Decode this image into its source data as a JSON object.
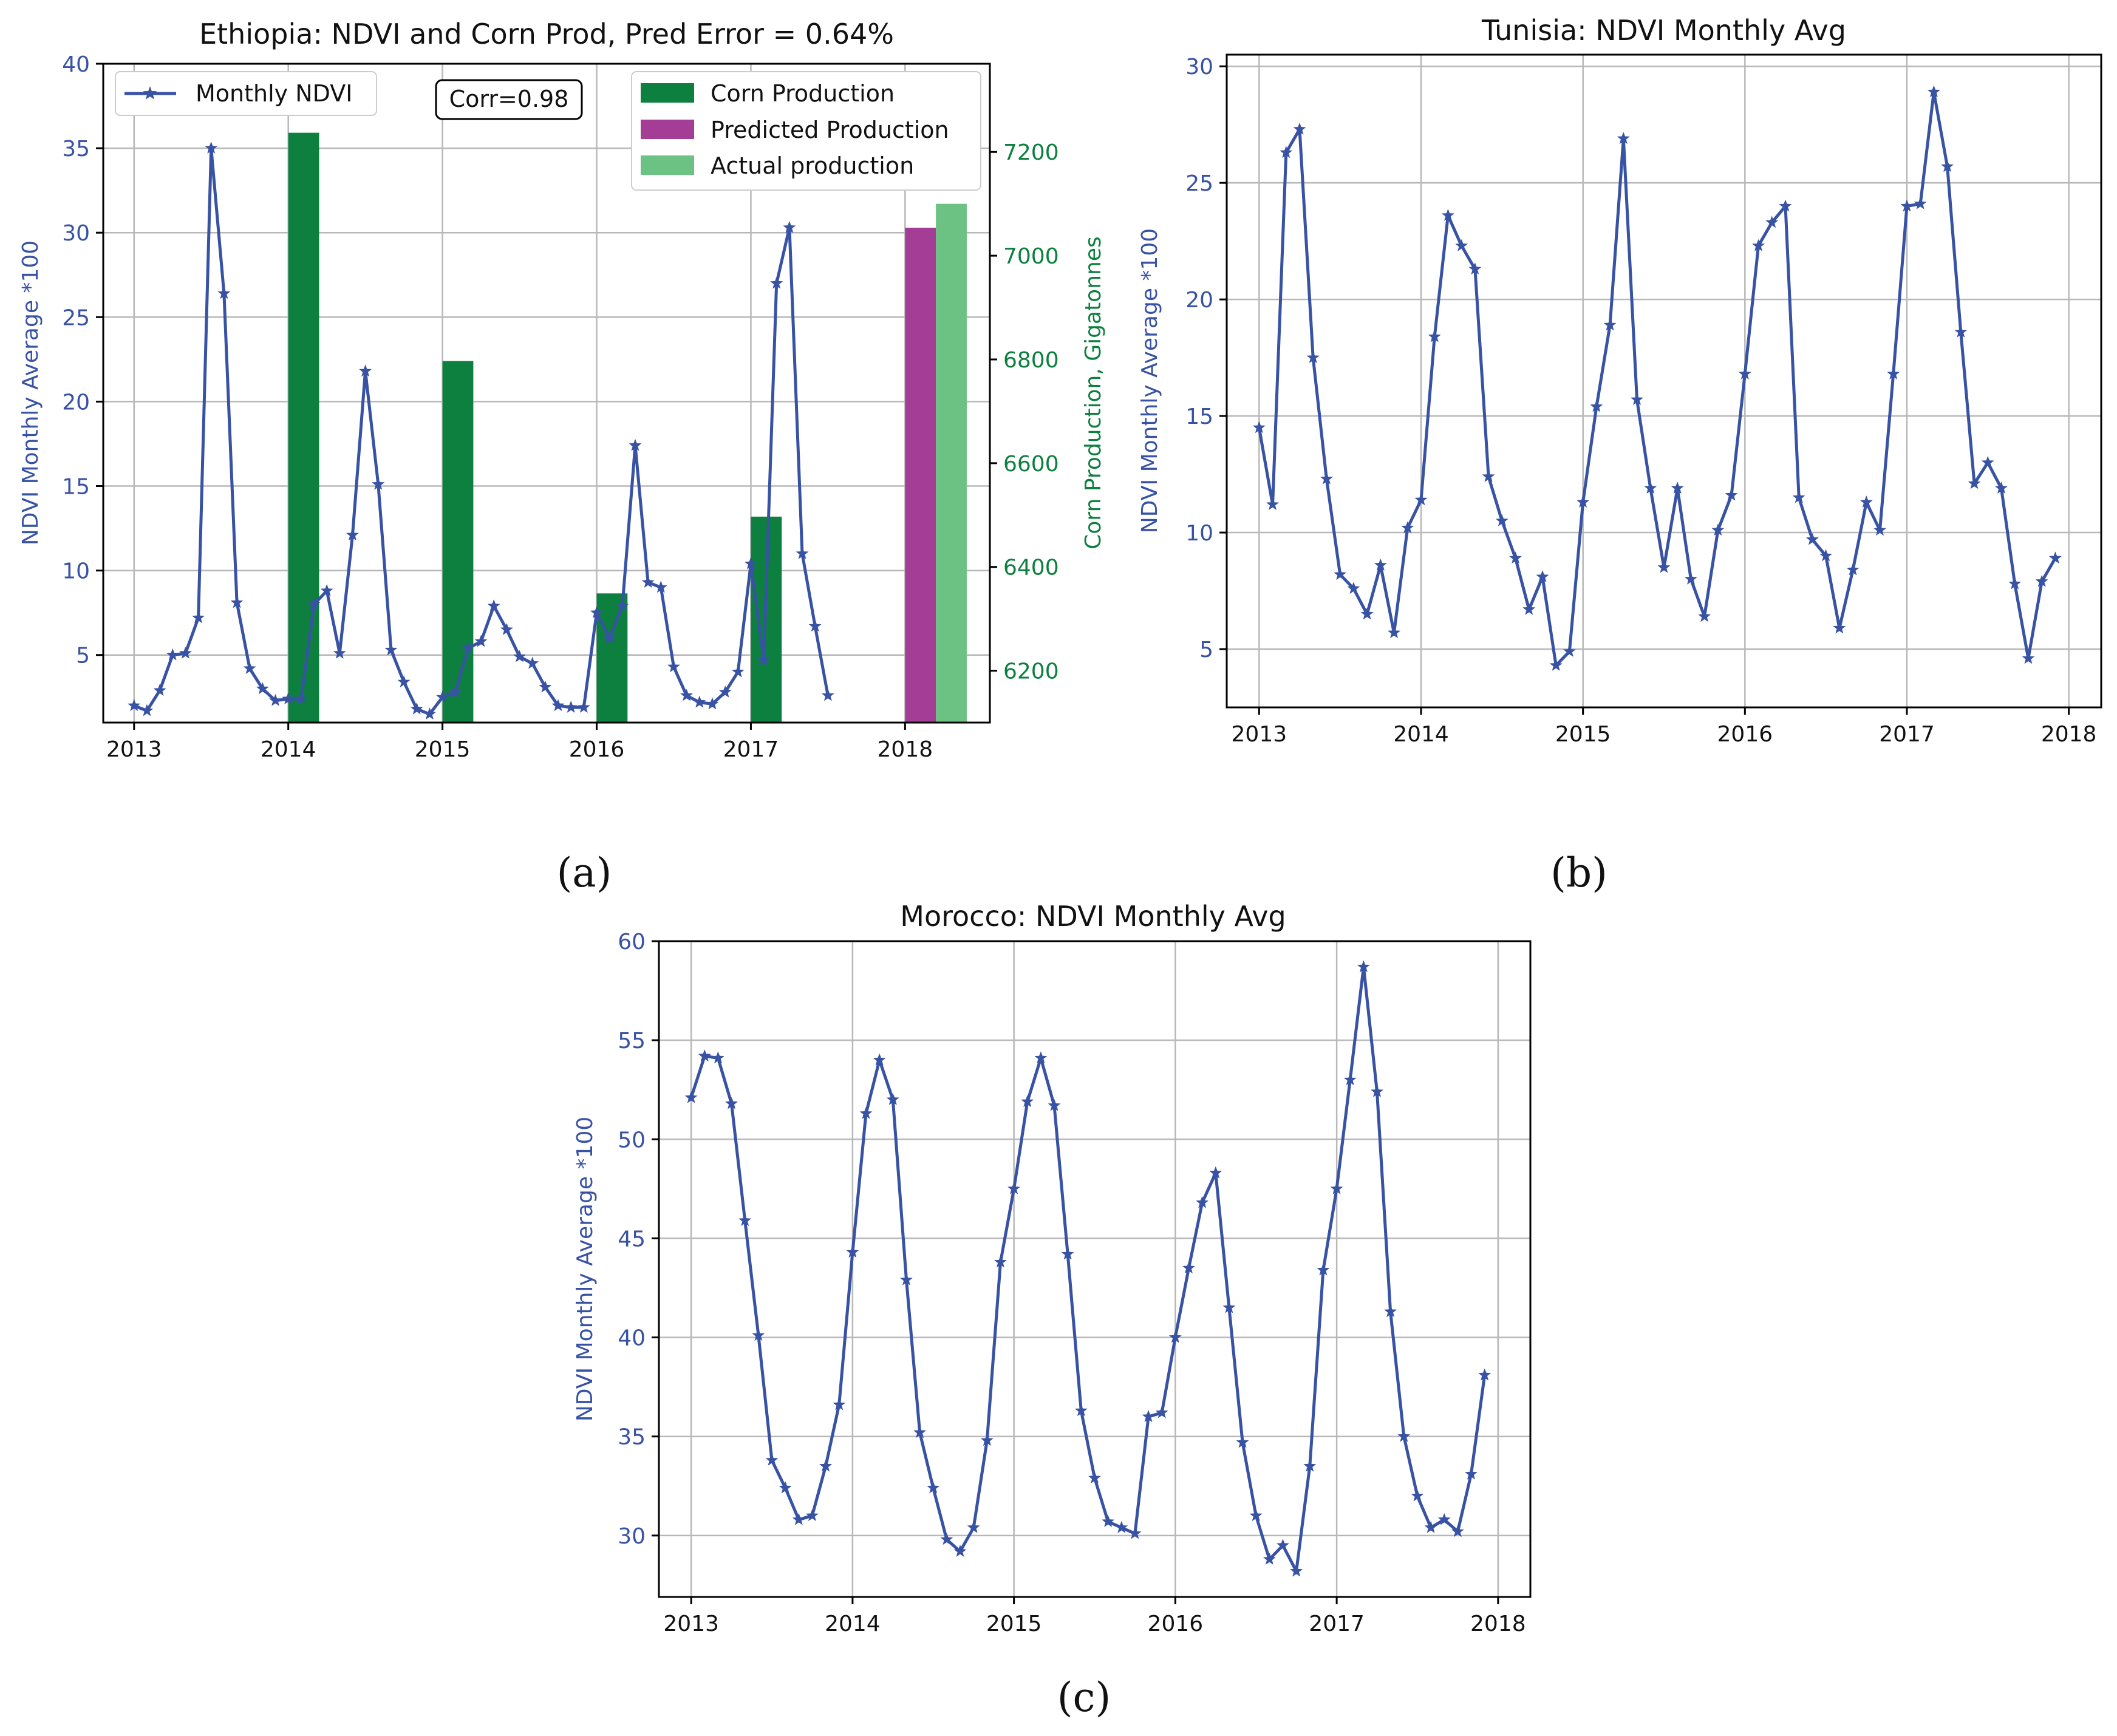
{
  "colors": {
    "ndvi": "#3852A4",
    "ndvi_text": "#3852A4",
    "corn": "#0D8040",
    "predicted": "#A33D96",
    "actual": "#6CC283",
    "grid": "#B8B8B8",
    "axis": "#000000",
    "right_axis_text": "#0D8040"
  },
  "chart_data": [
    {
      "id": "a",
      "type": "line+bar",
      "panel_label": "(a)",
      "title": "Ethiopia: NDVI and Corn Prod, Pred Error = 0.64%",
      "xlabel": "",
      "ylabel": "NDVI Monthly Average *100",
      "ylabel_right": "Corn Production, Gigatonnes",
      "xlim": [
        2012.8,
        2018.55
      ],
      "ylim": [
        1.0,
        40.0
      ],
      "ylim_right": [
        6100,
        7370
      ],
      "x_ticks": [
        2013,
        2014,
        2015,
        2016,
        2017,
        2018
      ],
      "x_tick_labels": [
        "2013",
        "2014",
        "2015",
        "2016",
        "2017",
        "2018"
      ],
      "y_ticks": [
        5,
        10,
        15,
        20,
        25,
        30,
        35,
        40
      ],
      "y_tick_labels": [
        "5",
        "10",
        "15",
        "20",
        "25",
        "30",
        "35",
        "40"
      ],
      "y_ticks_right": [
        6200,
        6400,
        6600,
        6800,
        7000,
        7200
      ],
      "y_tick_labels_right": [
        "6200",
        "6400",
        "6600",
        "6800",
        "7000",
        "7200"
      ],
      "grid": true,
      "annotation": "Corr=0.98",
      "legend_left": [
        "Monthly NDVI"
      ],
      "legend_right": [
        "Corn Production",
        "Predicted Production",
        "Actual production"
      ],
      "series": [
        {
          "name": "Monthly NDVI",
          "kind": "line",
          "x_start": 2013.0,
          "x_step": 0.08333,
          "values": [
            2.0,
            1.7,
            2.9,
            5.0,
            5.1,
            7.2,
            35.0,
            26.4,
            8.1,
            4.2,
            3.0,
            2.3,
            2.4,
            2.4,
            8.0,
            8.8,
            5.1,
            12.1,
            21.8,
            15.1,
            5.3,
            3.4,
            1.8,
            1.5,
            2.5,
            2.8,
            5.4,
            5.8,
            7.9,
            6.5,
            4.9,
            4.5,
            3.1,
            2.0,
            1.9,
            1.9,
            7.5,
            6.0,
            7.9,
            17.4,
            9.3,
            9.0,
            4.3,
            2.6,
            2.2,
            2.1,
            2.8,
            4.0,
            10.4,
            4.7,
            27.0,
            30.3,
            11.0,
            6.7,
            2.6
          ]
        },
        {
          "name": "Corn Production",
          "kind": "bar",
          "x": [
            2014.0,
            2015.0,
            2016.0,
            2017.0
          ],
          "values": [
            7237,
            6797,
            6349,
            6497
          ]
        },
        {
          "name": "Predicted Production",
          "kind": "bar",
          "x": [
            2018.0
          ],
          "values": [
            7054
          ]
        },
        {
          "name": "Actual production",
          "kind": "bar",
          "x": [
            2018.2
          ],
          "values": [
            7100
          ]
        }
      ]
    },
    {
      "id": "b",
      "type": "line",
      "panel_label": "(b)",
      "title": "Tunisia: NDVI Monthly Avg",
      "xlabel": "",
      "ylabel": "NDVI Monthly Average *100",
      "xlim": [
        2012.8,
        2018.2
      ],
      "ylim": [
        2.5,
        30.5
      ],
      "x_ticks": [
        2013,
        2014,
        2015,
        2016,
        2017,
        2018
      ],
      "x_tick_labels": [
        "2013",
        "2014",
        "2015",
        "2016",
        "2017",
        "2018"
      ],
      "y_ticks": [
        5,
        10,
        15,
        20,
        25,
        30
      ],
      "y_tick_labels": [
        "5",
        "10",
        "15",
        "20",
        "25",
        "30"
      ],
      "grid": true,
      "series": [
        {
          "name": "Monthly NDVI",
          "x_start": 2013.0,
          "x_step": 0.08333,
          "values": [
            14.5,
            11.2,
            26.3,
            27.3,
            17.5,
            12.3,
            8.2,
            7.6,
            6.5,
            8.6,
            5.7,
            10.2,
            11.4,
            18.4,
            23.6,
            22.3,
            21.3,
            12.4,
            10.5,
            8.9,
            6.7,
            8.1,
            4.3,
            4.9,
            11.3,
            15.4,
            18.9,
            26.9,
            15.7,
            11.9,
            8.5,
            11.9,
            8.0,
            6.4,
            10.1,
            11.6,
            16.8,
            22.3,
            23.3,
            24.0,
            11.5,
            9.7,
            9.0,
            5.9,
            8.4,
            11.3,
            10.1,
            16.8,
            24.0,
            24.1,
            28.9,
            25.7,
            18.6,
            12.1,
            13.0,
            11.9,
            7.8,
            4.6,
            7.9,
            8.9
          ]
        }
      ]
    },
    {
      "id": "c",
      "type": "line",
      "panel_label": "(c)",
      "title": "Morocco: NDVI Monthly Avg",
      "xlabel": "",
      "ylabel": "NDVI Monthly Average *100",
      "xlim": [
        2012.8,
        2018.2
      ],
      "ylim": [
        26.9,
        60.0
      ],
      "x_ticks": [
        2013,
        2014,
        2015,
        2016,
        2017,
        2018
      ],
      "x_tick_labels": [
        "2013",
        "2014",
        "2015",
        "2016",
        "2017",
        "2018"
      ],
      "y_ticks": [
        30,
        35,
        40,
        45,
        50,
        55,
        60
      ],
      "y_tick_labels": [
        "30",
        "35",
        "40",
        "45",
        "50",
        "55",
        "60"
      ],
      "grid": true,
      "series": [
        {
          "name": "Monthly NDVI",
          "x_start": 2013.0,
          "x_step": 0.08333,
          "values": [
            52.1,
            54.2,
            54.1,
            51.8,
            45.9,
            40.1,
            33.8,
            32.4,
            30.8,
            31.0,
            33.5,
            36.6,
            44.3,
            51.3,
            54.0,
            52.0,
            42.9,
            35.2,
            32.4,
            29.8,
            29.2,
            30.4,
            34.8,
            43.8,
            47.5,
            51.9,
            54.1,
            51.7,
            44.2,
            36.3,
            32.9,
            30.7,
            30.4,
            30.1,
            36.0,
            36.2,
            40.0,
            43.5,
            46.8,
            48.3,
            41.5,
            34.7,
            31.0,
            28.8,
            29.5,
            28.2,
            33.5,
            43.4,
            47.5,
            53.0,
            58.7,
            52.4,
            41.3,
            35.0,
            32.0,
            30.4,
            30.8,
            30.2,
            33.1,
            38.1
          ]
        }
      ]
    }
  ]
}
